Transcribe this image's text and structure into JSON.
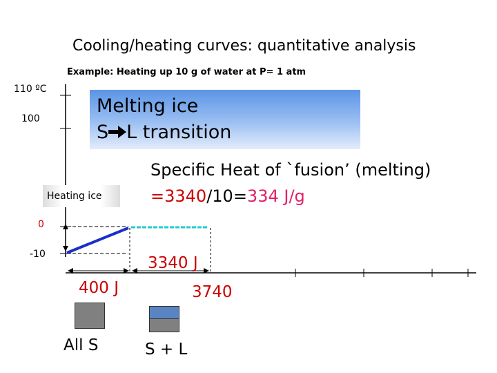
{
  "title": "Cooling/heating curves: quantitative analysis",
  "example": "Example: Heating up 10 g of water at P= 1 atm",
  "y_labels": {
    "t110": "110 ºC",
    "t100": "100",
    "t0": "0",
    "tm10": "-10"
  },
  "melting_box": {
    "line1": "Melting ice",
    "line2": "S",
    "line2_rest": "L transition"
  },
  "heating_ice_label": "Heating ice",
  "fusion": {
    "line1": "Specific Heat of `fusion’ (melting)",
    "eq1": "=",
    "num1": "3340",
    "eq2": "/10=",
    "num2": "334",
    "unit": " J/g"
  },
  "energy": {
    "melting": "3340 J",
    "heating": "400 J",
    "cumulative": "3740"
  },
  "state": {
    "solid": "All  S",
    "mixed": "S + L"
  },
  "colors": {
    "heating_segment": "#1a2fc8",
    "melting_segment": "#22cccc",
    "red_text": "#cc0000",
    "pink_text": "#e0206a",
    "melting_box": "#5b94e6"
  },
  "chart_data": {
    "type": "line",
    "xlabel": "",
    "ylabel": "",
    "y_ticks": [
      -10,
      0,
      100,
      110
    ],
    "series": [
      {
        "x": [
          0,
          400
        ],
        "y": [
          -10,
          0
        ]
      },
      {
        "x": [
          400,
          3740
        ],
        "y": [
          0,
          0
        ]
      }
    ]
  }
}
